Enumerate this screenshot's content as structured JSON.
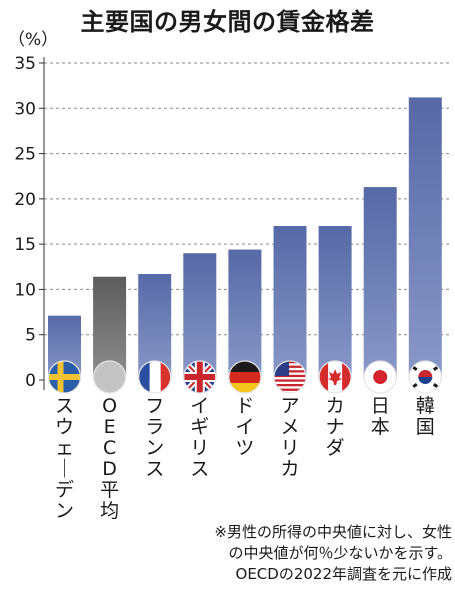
{
  "chart_data": {
    "type": "bar",
    "title": "主要国の男女間の賃金格差",
    "unit_label": "（%）",
    "categories": [
      "スウェーデン",
      "OECD平均",
      "フランス",
      "イギリス",
      "ドイツ",
      "アメリカ",
      "カナダ",
      "日本",
      "韓国"
    ],
    "values": [
      7.1,
      11.4,
      11.7,
      14.0,
      14.4,
      17.0,
      17.0,
      21.3,
      31.2
    ],
    "highlight_category": "OECD平均",
    "ylim": [
      0,
      35
    ],
    "yticks": [
      0,
      5,
      10,
      15,
      20,
      25,
      30,
      35
    ],
    "grid": true,
    "colors": {
      "bar": "#5669a6",
      "bar_light": "#8a99c8",
      "oecd_bar": "#5c5c5c",
      "oecd_bar_light": "#8e8e8e",
      "grid": "#8a8a8a"
    },
    "flag_icons": [
      "flag-sweden-icon",
      "oecd-circle-icon",
      "flag-france-icon",
      "flag-uk-icon",
      "flag-germany-icon",
      "flag-usa-icon",
      "flag-canada-icon",
      "flag-japan-icon",
      "flag-korea-icon"
    ]
  },
  "note": {
    "lines": [
      "※男性の所得の中央値に対し、女性",
      "の中央値が何％少ないかを示す。",
      "OECDの2022年調査を元に作成"
    ]
  }
}
